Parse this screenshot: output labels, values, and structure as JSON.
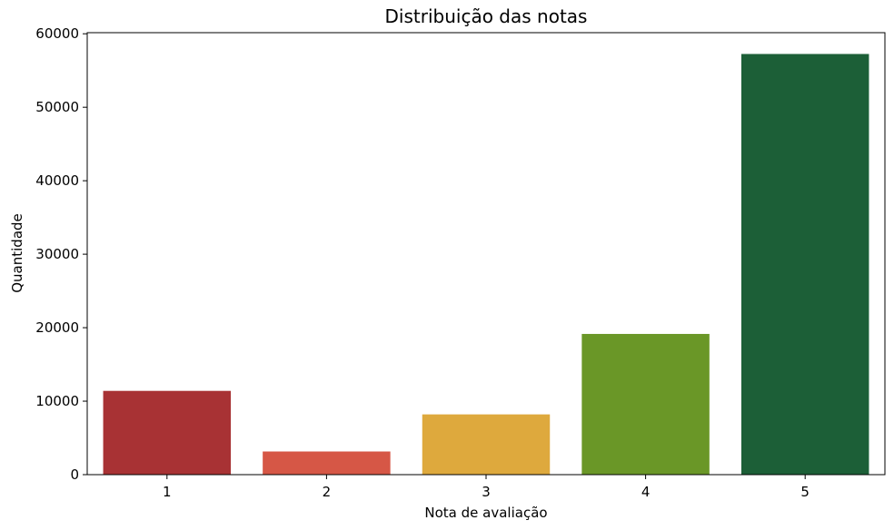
{
  "chart_data": {
    "type": "bar",
    "title": "Distribuição das notas",
    "xlabel": "Nota de avaliação",
    "ylabel": "Quantidade",
    "categories": [
      "1",
      "2",
      "3",
      "4",
      "5"
    ],
    "values": [
      11400,
      3150,
      8200,
      19150,
      57250
    ],
    "colors": [
      "#a83234",
      "#d65746",
      "#dea93d",
      "#6a9727",
      "#1c5f37"
    ],
    "ylim": [
      0,
      60150
    ],
    "yticks": [
      0,
      10000,
      20000,
      30000,
      40000,
      50000,
      60000
    ],
    "grid": false,
    "legend": "none"
  }
}
